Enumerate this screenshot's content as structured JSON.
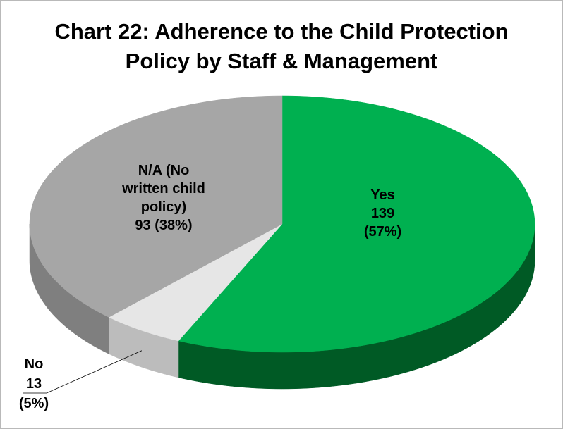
{
  "chart_data": {
    "type": "pie",
    "title_lines": [
      "Chart 22: Adherence to the Child Protection",
      "Policy by Staff & Management"
    ],
    "slices": [
      {
        "label_lines": [
          "Yes"
        ],
        "value": 139,
        "value_text": "139",
        "percent_text": "(57%)",
        "color": "#00b050",
        "side_color": "#005a25"
      },
      {
        "label_lines": [
          "No"
        ],
        "value": 13,
        "value_text": "13",
        "percent_text": "(5%)",
        "color": "#e6e6e6",
        "side_color": "#bcbcbc"
      },
      {
        "label_lines": [
          "N/A (No",
          "written child",
          "policy)"
        ],
        "value": 93,
        "value_text": "93",
        "percent_text": "(38%)",
        "color": "#a6a6a6",
        "side_color": "#7f7f7f"
      }
    ],
    "style": "3d"
  }
}
